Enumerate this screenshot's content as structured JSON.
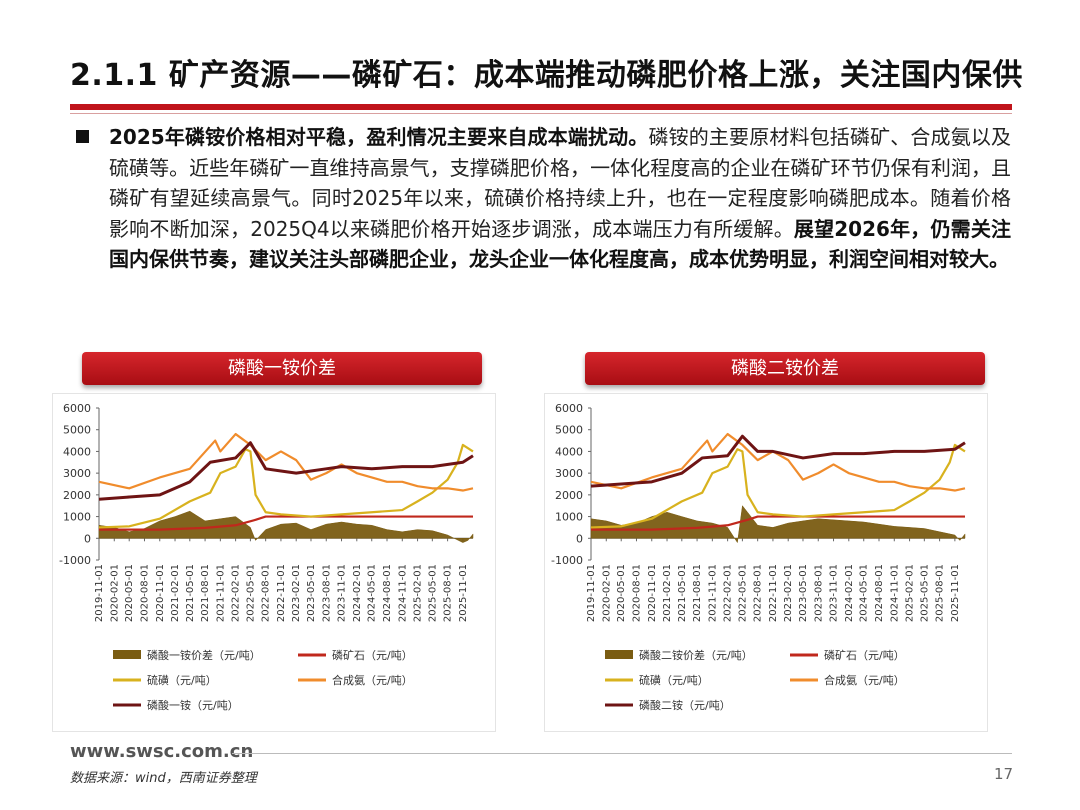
{
  "page_title": "2.1.1 矿产资源——磷矿石：成本端推动磷肥价格上涨，关注国内保供",
  "bullet": {
    "bold_lead": "2025年磷铵价格相对平稳，盈利情况主要来自成本端扰动。",
    "body": "磷铵的主要原材料包括磷矿、合成氨以及硫磺等。近些年磷矿一直维持高景气，支撑磷肥价格，一体化程度高的企业在磷矿环节仍保有利润，且磷矿有望延续高景气。同时2025年以来，硫磺价格持续上升，也在一定程度影响磷肥成本。随着价格影响不断加深，2025Q4以来磷肥价格开始逐步调涨，成本端压力有所缓解。",
    "bold_tail": "展望2026年，仍需关注国内保供节奏，建议关注头部磷肥企业，龙头企业一体化程度高，成本优势明显，利润空间相对较大。"
  },
  "colors": {
    "spread": "#7a5c12",
    "rock": "#c0281c",
    "sulfur": "#d8b21e",
    "ammonia": "#f08c2c",
    "product": "#6e1414",
    "header_red": "#c0141b"
  },
  "chart_data": [
    {
      "type": "line",
      "title": "磷酸一铵价差",
      "y_ticks": [
        "6000",
        "5000",
        "4000",
        "3000",
        "2000",
        "1000",
        "0",
        "-1000"
      ],
      "ylim": [
        -1000,
        6000
      ],
      "x_ticks": [
        "2019-11-01",
        "2020-02-01",
        "2020-05-01",
        "2020-08-01",
        "2020-11-01",
        "2021-02-01",
        "2021-05-01",
        "2021-08-01",
        "2021-11-01",
        "2022-02-01",
        "2022-05-01",
        "2022-08-01",
        "2022-11-01",
        "2023-02-01",
        "2023-05-01",
        "2023-08-01",
        "2023-11-01",
        "2024-02-01",
        "2024-05-01",
        "2024-08-01",
        "2024-11-01",
        "2025-02-01",
        "2025-05-01",
        "2025-08-01",
        "2025-11-01"
      ],
      "x_range": [
        "2019-11-01",
        "2026-01-01"
      ],
      "series": [
        {
          "name": "磷酸一铵价差（元/吨）",
          "kind": "area",
          "color": "#7a5c12",
          "x": [
            "2019-11-01",
            "2020-02-01",
            "2020-05-01",
            "2020-08-01",
            "2020-11-01",
            "2021-02-01",
            "2021-05-01",
            "2021-08-01",
            "2021-11-01",
            "2022-02-01",
            "2022-05-01",
            "2022-06-01",
            "2022-08-01",
            "2022-11-01",
            "2023-02-01",
            "2023-05-01",
            "2023-08-01",
            "2023-11-01",
            "2024-02-01",
            "2024-05-01",
            "2024-08-01",
            "2024-11-01",
            "2025-02-01",
            "2025-05-01",
            "2025-08-01",
            "2025-11-01",
            "2025-12-01",
            "2026-01-01"
          ],
          "y": [
            600,
            500,
            300,
            450,
            800,
            1000,
            1250,
            800,
            900,
            1000,
            500,
            -100,
            400,
            650,
            700,
            400,
            650,
            750,
            650,
            600,
            400,
            300,
            400,
            350,
            150,
            -200,
            -100,
            200
          ]
        },
        {
          "name": "磷矿石（元/吨）",
          "kind": "line",
          "color": "#c0281c",
          "x": [
            "2019-11-01",
            "2020-11-01",
            "2021-08-01",
            "2022-02-01",
            "2022-06-01",
            "2022-08-01",
            "2023-08-01",
            "2024-08-01",
            "2025-08-01",
            "2026-01-01"
          ],
          "y": [
            400,
            400,
            480,
            600,
            850,
            1000,
            1000,
            1000,
            1000,
            1000
          ]
        },
        {
          "name": "硫磺（元/吨）",
          "kind": "line",
          "color": "#d8b21e",
          "x": [
            "2019-11-01",
            "2020-05-01",
            "2020-11-01",
            "2021-05-01",
            "2021-09-01",
            "2021-11-01",
            "2022-02-01",
            "2022-04-01",
            "2022-05-01",
            "2022-06-01",
            "2022-08-01",
            "2022-11-01",
            "2023-05-01",
            "2023-11-01",
            "2024-05-01",
            "2024-11-01",
            "2025-02-01",
            "2025-05-01",
            "2025-08-01",
            "2025-10-01",
            "2025-11-01",
            "2026-01-01"
          ],
          "y": [
            500,
            550,
            900,
            1700,
            2100,
            3000,
            3300,
            4100,
            4000,
            2000,
            1200,
            1100,
            1000,
            1100,
            1200,
            1300,
            1700,
            2100,
            2700,
            3500,
            4300,
            4000
          ]
        },
        {
          "name": "合成氨（元/吨）",
          "kind": "line",
          "color": "#f08c2c",
          "x": [
            "2019-11-01",
            "2020-05-01",
            "2020-11-01",
            "2021-05-01",
            "2021-10-01",
            "2021-11-01",
            "2022-02-01",
            "2022-05-01",
            "2022-08-01",
            "2022-11-01",
            "2023-02-01",
            "2023-05-01",
            "2023-08-01",
            "2023-11-01",
            "2024-02-01",
            "2024-05-01",
            "2024-08-01",
            "2024-11-01",
            "2025-02-01",
            "2025-05-01",
            "2025-08-01",
            "2025-11-01",
            "2026-01-01"
          ],
          "y": [
            2600,
            2300,
            2800,
            3200,
            4500,
            4000,
            4800,
            4300,
            3600,
            4000,
            3600,
            2700,
            3000,
            3400,
            3000,
            2800,
            2600,
            2600,
            2400,
            2300,
            2300,
            2200,
            2300
          ]
        },
        {
          "name": "磷酸一铵（元/吨）",
          "kind": "line",
          "color": "#6e1414",
          "x": [
            "2019-11-01",
            "2020-05-01",
            "2020-11-01",
            "2021-05-01",
            "2021-09-01",
            "2022-02-01",
            "2022-05-01",
            "2022-08-01",
            "2022-11-01",
            "2023-02-01",
            "2023-05-01",
            "2023-08-01",
            "2023-11-01",
            "2024-05-01",
            "2024-11-01",
            "2025-05-01",
            "2025-11-01",
            "2026-01-01"
          ],
          "y": [
            1800,
            1900,
            2000,
            2600,
            3500,
            3700,
            4400,
            3200,
            3100,
            3000,
            3100,
            3200,
            3300,
            3200,
            3300,
            3300,
            3500,
            3800
          ]
        }
      ]
    },
    {
      "type": "line",
      "title": "磷酸二铵价差",
      "y_ticks": [
        "6000",
        "5000",
        "4000",
        "3000",
        "2000",
        "1000",
        "0",
        "-1000"
      ],
      "ylim": [
        -1000,
        6000
      ],
      "x_ticks": [
        "2019-11-01",
        "2020-02-01",
        "2020-05-01",
        "2020-08-01",
        "2020-11-01",
        "2021-02-01",
        "2021-05-01",
        "2021-08-01",
        "2021-11-01",
        "2022-02-01",
        "2022-05-01",
        "2022-08-01",
        "2022-11-01",
        "2023-02-01",
        "2023-05-01",
        "2023-08-01",
        "2023-11-01",
        "2024-02-01",
        "2024-05-01",
        "2024-08-01",
        "2024-11-01",
        "2025-02-01",
        "2025-05-01",
        "2025-08-01",
        "2025-11-01"
      ],
      "x_range": [
        "2019-11-01",
        "2026-01-01"
      ],
      "series": [
        {
          "name": "磷酸二铵价差（元/吨）",
          "kind": "area",
          "color": "#7a5c12",
          "x": [
            "2019-11-01",
            "2020-02-01",
            "2020-05-01",
            "2020-08-01",
            "2020-11-01",
            "2021-02-01",
            "2021-05-01",
            "2021-08-01",
            "2021-11-01",
            "2022-02-01",
            "2022-04-01",
            "2022-05-01",
            "2022-06-01",
            "2022-08-01",
            "2022-11-01",
            "2023-02-01",
            "2023-05-01",
            "2023-08-01",
            "2023-11-01",
            "2024-02-01",
            "2024-05-01",
            "2024-08-01",
            "2024-11-01",
            "2025-02-01",
            "2025-05-01",
            "2025-08-01",
            "2025-11-01",
            "2025-12-01",
            "2026-01-01"
          ],
          "y": [
            900,
            800,
            600,
            700,
            1000,
            1200,
            1000,
            800,
            700,
            500,
            -200,
            1500,
            1200,
            600,
            500,
            700,
            800,
            900,
            850,
            800,
            750,
            650,
            550,
            500,
            450,
            300,
            150,
            -100,
            200
          ]
        },
        {
          "name": "磷矿石（元/吨）",
          "kind": "line",
          "color": "#c0281c",
          "x": [
            "2019-11-01",
            "2020-11-01",
            "2021-08-01",
            "2022-02-01",
            "2022-06-01",
            "2022-08-01",
            "2023-08-01",
            "2024-08-01",
            "2025-08-01",
            "2026-01-01"
          ],
          "y": [
            400,
            400,
            480,
            600,
            850,
            1000,
            1000,
            1000,
            1000,
            1000
          ]
        },
        {
          "name": "硫磺（元/吨）",
          "kind": "line",
          "color": "#d8b21e",
          "x": [
            "2019-11-01",
            "2020-05-01",
            "2020-11-01",
            "2021-05-01",
            "2021-09-01",
            "2021-11-01",
            "2022-02-01",
            "2022-04-01",
            "2022-05-01",
            "2022-06-01",
            "2022-08-01",
            "2022-11-01",
            "2023-05-01",
            "2023-11-01",
            "2024-05-01",
            "2024-11-01",
            "2025-02-01",
            "2025-05-01",
            "2025-08-01",
            "2025-10-01",
            "2025-11-01",
            "2026-01-01"
          ],
          "y": [
            500,
            550,
            900,
            1700,
            2100,
            3000,
            3300,
            4100,
            4000,
            2000,
            1200,
            1100,
            1000,
            1100,
            1200,
            1300,
            1700,
            2100,
            2700,
            3500,
            4300,
            4000
          ]
        },
        {
          "name": "合成氨（元/吨）",
          "kind": "line",
          "color": "#f08c2c",
          "x": [
            "2019-11-01",
            "2020-05-01",
            "2020-11-01",
            "2021-05-01",
            "2021-10-01",
            "2021-11-01",
            "2022-02-01",
            "2022-05-01",
            "2022-08-01",
            "2022-11-01",
            "2023-02-01",
            "2023-05-01",
            "2023-08-01",
            "2023-11-01",
            "2024-02-01",
            "2024-05-01",
            "2024-08-01",
            "2024-11-01",
            "2025-02-01",
            "2025-05-01",
            "2025-08-01",
            "2025-11-01",
            "2026-01-01"
          ],
          "y": [
            2600,
            2300,
            2800,
            3200,
            4500,
            4000,
            4800,
            4300,
            3600,
            4000,
            3600,
            2700,
            3000,
            3400,
            3000,
            2800,
            2600,
            2600,
            2400,
            2300,
            2300,
            2200,
            2300
          ]
        },
        {
          "name": "磷酸二铵（元/吨）",
          "kind": "line",
          "color": "#6e1414",
          "x": [
            "2019-11-01",
            "2020-05-01",
            "2020-11-01",
            "2021-05-01",
            "2021-09-01",
            "2022-02-01",
            "2022-05-01",
            "2022-08-01",
            "2022-11-01",
            "2023-05-01",
            "2023-11-01",
            "2024-05-01",
            "2024-11-01",
            "2025-05-01",
            "2025-11-01",
            "2026-01-01"
          ],
          "y": [
            2400,
            2500,
            2600,
            3000,
            3700,
            3800,
            4700,
            4000,
            4000,
            3700,
            3900,
            3900,
            4000,
            4000,
            4100,
            4400
          ]
        }
      ]
    }
  ],
  "footer": {
    "url": "www.swsc.com.cn",
    "source": "数据来源：wind，西南证券整理",
    "page_number": "17"
  }
}
